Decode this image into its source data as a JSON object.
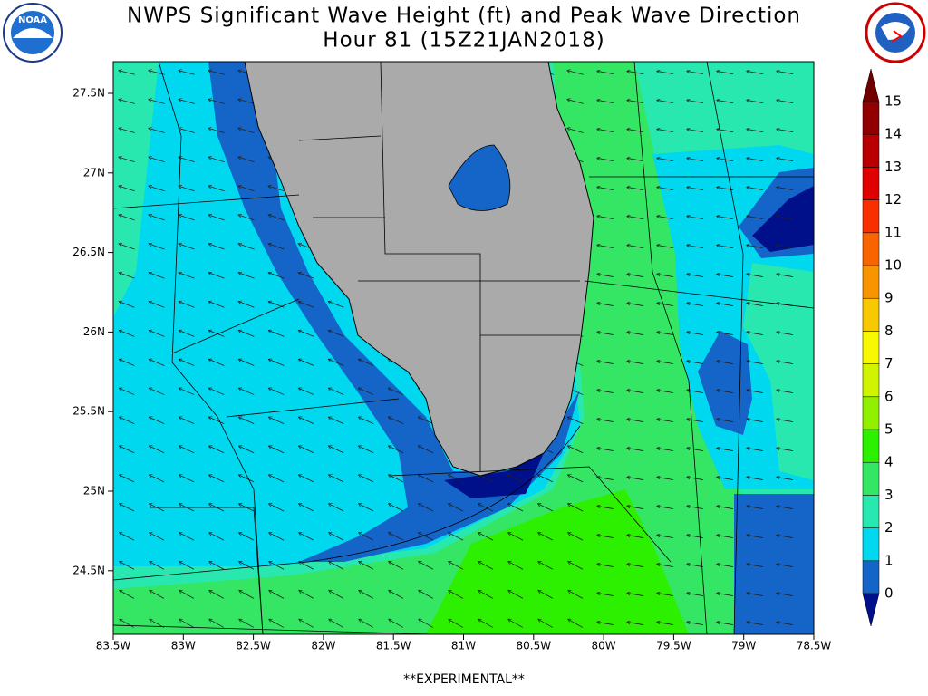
{
  "header": {
    "title": "NWPS Significant Wave Height (ft) and Peak Wave Direction",
    "subtitle": "Hour 81 (15Z21JAN2018)"
  },
  "logos": {
    "left": "NOAA"
  },
  "map": {
    "lat_labels": [
      "27.5N",
      "27N",
      "26.5N",
      "26N",
      "25.5N",
      "25N",
      "24.5N"
    ],
    "lon_labels": [
      "83.5W",
      "83W",
      "82.5W",
      "82W",
      "81.5W",
      "81W",
      "80.5W",
      "80W",
      "79.5W",
      "79W",
      "78.5W"
    ]
  },
  "colorbar": {
    "levels": [
      0,
      1,
      2,
      3,
      4,
      5,
      6,
      7,
      8,
      9,
      10,
      11,
      12,
      13,
      14,
      15
    ],
    "colors": [
      "#1565c8",
      "#00d8f0",
      "#28e8b0",
      "#34e664",
      "#2cf000",
      "#90f000",
      "#d0f400",
      "#f8f800",
      "#f8c800",
      "#f89400",
      "#f86400",
      "#f83000",
      "#e00000",
      "#b80000",
      "#900000"
    ]
  },
  "footer": "**EXPERIMENTAL**"
}
